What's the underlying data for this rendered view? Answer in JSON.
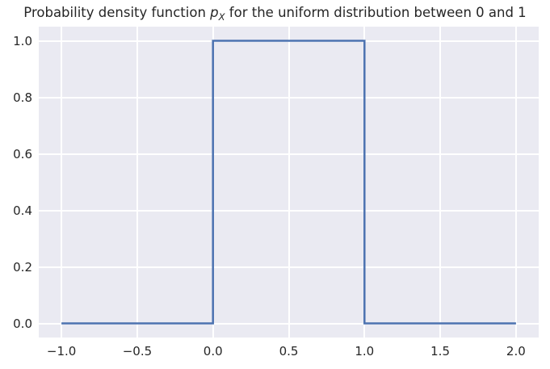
{
  "title": {
    "prefix": "Probability density function ",
    "math_var": "p",
    "math_sub": "X",
    "suffix": " for the uniform distribution between 0 and 1"
  },
  "colors": {
    "figure_background": "#ffffff",
    "axes_background": "#eaeaf2",
    "grid": "#ffffff",
    "line": "#4c72b0",
    "text": "#262626"
  },
  "chart_data": {
    "type": "line",
    "title": "Probability density function p_X for the uniform distribution between 0 and 1",
    "series": [
      {
        "name": "uniform-pdf-step",
        "x": [
          -1,
          0,
          0,
          1,
          1,
          2
        ],
        "y": [
          0,
          0,
          1,
          1,
          0,
          0
        ]
      }
    ],
    "xlabel": "",
    "ylabel": "",
    "xlim": [
      -1.15,
      2.15
    ],
    "ylim": [
      -0.05,
      1.05
    ],
    "xticks": {
      "values": [
        -1.0,
        -0.5,
        0.0,
        0.5,
        1.0,
        1.5,
        2.0
      ],
      "labels": [
        "−1.0",
        "−0.5",
        "0.0",
        "0.5",
        "1.0",
        "1.5",
        "2.0"
      ]
    },
    "yticks": {
      "values": [
        0.0,
        0.2,
        0.4,
        0.6,
        0.8,
        1.0
      ],
      "labels": [
        "0.0",
        "0.2",
        "0.4",
        "0.6",
        "0.8",
        "1.0"
      ]
    },
    "grid": true,
    "legend": null
  }
}
